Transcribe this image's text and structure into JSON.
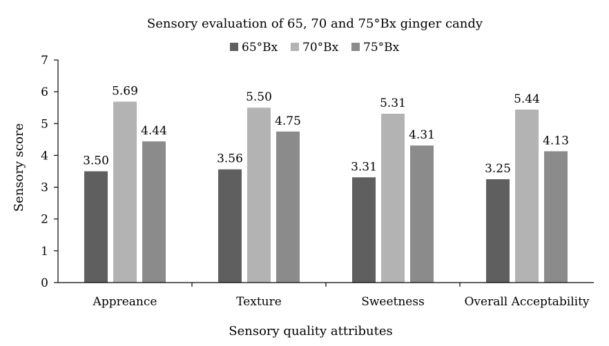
{
  "chart_data": {
    "type": "bar",
    "title": "Sensory evaluation of 65, 70 and 75°Bx ginger candy",
    "xlabel": "Sensory quality attributes",
    "ylabel": "Sensory score",
    "categories": [
      "Appreance",
      "Texture",
      "Sweetness",
      "Overall Acceptability"
    ],
    "series": [
      {
        "name": "65°Bx",
        "color": "#5f5f5f",
        "values": [
          3.5,
          3.56,
          3.31,
          3.25
        ]
      },
      {
        "name": "70°Bx",
        "color": "#b3b3b3",
        "values": [
          5.69,
          5.5,
          5.31,
          5.44
        ]
      },
      {
        "name": "75°Bx",
        "color": "#8b8b8b",
        "values": [
          4.44,
          4.75,
          4.31,
          4.13
        ]
      }
    ],
    "data_labels": [
      [
        "3.50",
        "5.69",
        "4.44"
      ],
      [
        "3.56",
        "5.50",
        "4.75"
      ],
      [
        "3.31",
        "5.31",
        "4.31"
      ],
      [
        "3.25",
        "5.44",
        "4.13"
      ]
    ],
    "ylim": [
      0,
      7
    ],
    "yticks": [
      "0",
      "1",
      "2",
      "3",
      "4",
      "5",
      "6",
      "7"
    ],
    "legend_position": "top",
    "grid": false
  }
}
